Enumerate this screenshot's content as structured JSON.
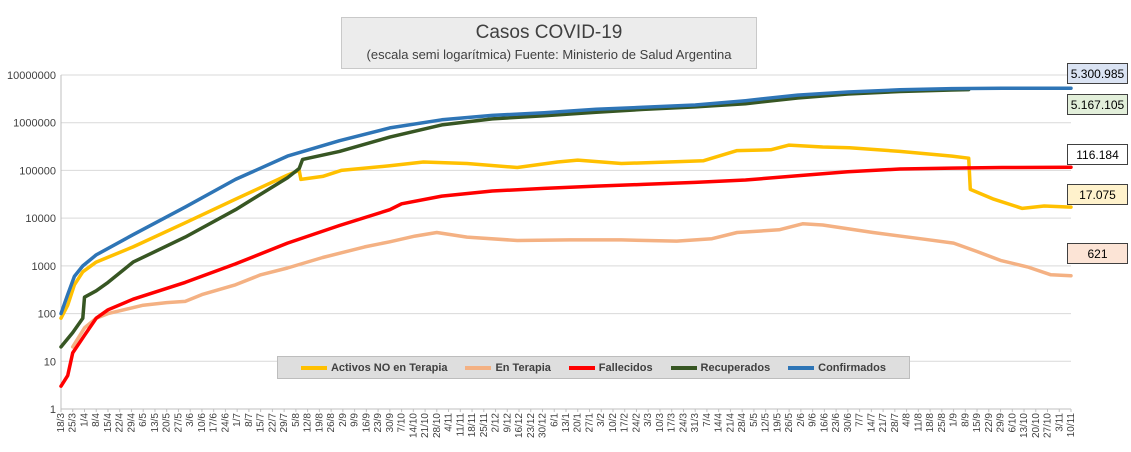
{
  "chart_data": {
    "type": "line",
    "title": "Casos COVID-19",
    "subtitle": "(escala semi logarítmica) Fuente: Ministerio de Salud Argentina",
    "y_scale": "log",
    "ylim": [
      1,
      10000000
    ],
    "y_ticks": [
      "1",
      "10",
      "100",
      "1000",
      "10000",
      "100000",
      "1000000",
      "10000000"
    ],
    "y_tick_values": [
      1,
      10,
      100,
      1000,
      10000,
      100000,
      1000000,
      10000000
    ],
    "x_start": "2020-03-18",
    "x_end": "2021-11-10",
    "x_ticks": [
      "18/3",
      "25/3",
      "1/4",
      "8/4",
      "15/4",
      "22/4",
      "29/4",
      "6/5",
      "13/5",
      "20/5",
      "27/5",
      "3/6",
      "10/6",
      "17/6",
      "24/6",
      "1/7",
      "8/7",
      "15/7",
      "22/7",
      "29/7",
      "5/8",
      "12/8",
      "19/8",
      "26/8",
      "2/9",
      "9/9",
      "16/9",
      "23/9",
      "30/9",
      "7/10",
      "14/10",
      "21/10",
      "28/10",
      "4/11",
      "11/11",
      "18/11",
      "25/11",
      "2/12",
      "9/12",
      "16/12",
      "23/12",
      "30/12",
      "6/1",
      "13/1",
      "20/1",
      "27/1",
      "3/2",
      "10/2",
      "17/2",
      "24/2",
      "3/3",
      "10/3",
      "17/3",
      "24/3",
      "31/3",
      "7/4",
      "14/4",
      "21/4",
      "28/4",
      "5/5",
      "12/5",
      "19/5",
      "26/5",
      "2/6",
      "9/6",
      "16/6",
      "23/6",
      "30/6",
      "7/7",
      "14/7",
      "21/7",
      "28/7",
      "4/8",
      "11/8",
      "18/8",
      "25/8",
      "1/9",
      "8/9",
      "15/9",
      "22/9",
      "29/9",
      "6/10",
      "13/10",
      "20/10",
      "27/10",
      "3/11",
      "10/11"
    ],
    "grid": "horizontal",
    "legend_position": "bottom-center",
    "series": [
      {
        "name": "Activos NO en Terapia",
        "color": "#ffc000",
        "points": [
          [
            "2020-03-18",
            80
          ],
          [
            "2020-03-22",
            150
          ],
          [
            "2020-03-26",
            400
          ],
          [
            "2020-03-31",
            750
          ],
          [
            "2020-04-08",
            1200
          ],
          [
            "2020-04-30",
            2500
          ],
          [
            "2020-05-31",
            8000
          ],
          [
            "2020-06-30",
            25000
          ],
          [
            "2020-07-31",
            80000
          ],
          [
            "2020-08-07",
            100000
          ],
          [
            "2020-08-08",
            65000
          ],
          [
            "2020-08-21",
            75000
          ],
          [
            "2020-09-01",
            100000
          ],
          [
            "2020-09-30",
            125000
          ],
          [
            "2020-10-20",
            150000
          ],
          [
            "2020-11-15",
            140000
          ],
          [
            "2020-12-15",
            115000
          ],
          [
            "2021-01-08",
            150000
          ],
          [
            "2021-01-20",
            165000
          ],
          [
            "2021-02-15",
            140000
          ],
          [
            "2021-03-15",
            150000
          ],
          [
            "2021-04-05",
            160000
          ],
          [
            "2021-04-25",
            260000
          ],
          [
            "2021-05-15",
            270000
          ],
          [
            "2021-05-26",
            340000
          ],
          [
            "2021-06-15",
            310000
          ],
          [
            "2021-07-01",
            300000
          ],
          [
            "2021-07-31",
            250000
          ],
          [
            "2021-08-31",
            200000
          ],
          [
            "2021-09-10",
            180000
          ],
          [
            "2021-09-11",
            40000
          ],
          [
            "2021-09-25",
            25000
          ],
          [
            "2021-10-12",
            16000
          ],
          [
            "2021-10-25",
            18000
          ],
          [
            "2021-11-10",
            17075
          ]
        ]
      },
      {
        "name": "En Terapia",
        "color": "#f4b183",
        "points": [
          [
            "2020-03-25",
            20
          ],
          [
            "2020-04-01",
            50
          ],
          [
            "2020-04-08",
            80
          ],
          [
            "2020-04-15",
            100
          ],
          [
            "2020-05-06",
            150
          ],
          [
            "2020-05-20",
            170
          ],
          [
            "2020-05-31",
            180
          ],
          [
            "2020-06-10",
            250
          ],
          [
            "2020-06-30",
            400
          ],
          [
            "2020-07-15",
            650
          ],
          [
            "2020-07-31",
            900
          ],
          [
            "2020-08-21",
            1500
          ],
          [
            "2020-09-15",
            2500
          ],
          [
            "2020-09-30",
            3200
          ],
          [
            "2020-10-15",
            4200
          ],
          [
            "2020-10-28",
            5000
          ],
          [
            "2020-11-15",
            4000
          ],
          [
            "2020-12-15",
            3400
          ],
          [
            "2021-01-15",
            3500
          ],
          [
            "2021-02-15",
            3500
          ],
          [
            "2021-03-20",
            3300
          ],
          [
            "2021-04-10",
            3700
          ],
          [
            "2021-04-25",
            5000
          ],
          [
            "2021-05-20",
            5700
          ],
          [
            "2021-06-03",
            7600
          ],
          [
            "2021-06-15",
            7200
          ],
          [
            "2021-07-15",
            5000
          ],
          [
            "2021-08-15",
            3600
          ],
          [
            "2021-09-01",
            3000
          ],
          [
            "2021-09-15",
            2000
          ],
          [
            "2021-09-29",
            1300
          ],
          [
            "2021-10-15",
            950
          ],
          [
            "2021-10-29",
            650
          ],
          [
            "2021-11-10",
            621
          ]
        ]
      },
      {
        "name": "Fallecidos",
        "color": "#ff0000",
        "points": [
          [
            "2020-03-18",
            3
          ],
          [
            "2020-03-22",
            5
          ],
          [
            "2020-03-25",
            15
          ],
          [
            "2020-04-01",
            35
          ],
          [
            "2020-04-08",
            80
          ],
          [
            "2020-04-15",
            120
          ],
          [
            "2020-04-30",
            200
          ],
          [
            "2020-05-31",
            450
          ],
          [
            "2020-06-30",
            1100
          ],
          [
            "2020-07-31",
            3000
          ],
          [
            "2020-08-31",
            7000
          ],
          [
            "2020-09-30",
            15000
          ],
          [
            "2020-10-07",
            20000
          ],
          [
            "2020-10-31",
            29000
          ],
          [
            "2020-11-30",
            37000
          ],
          [
            "2020-12-31",
            42000
          ],
          [
            "2021-01-31",
            47000
          ],
          [
            "2021-02-28",
            51000
          ],
          [
            "2021-03-31",
            56000
          ],
          [
            "2021-04-30",
            63000
          ],
          [
            "2021-05-31",
            77000
          ],
          [
            "2021-06-30",
            94000
          ],
          [
            "2021-07-31",
            107000
          ],
          [
            "2021-08-31",
            112000
          ],
          [
            "2021-09-30",
            115000
          ],
          [
            "2021-11-10",
            116184
          ]
        ]
      },
      {
        "name": "Recuperados",
        "color": "#375623",
        "points": [
          [
            "2020-03-18",
            20
          ],
          [
            "2020-03-25",
            40
          ],
          [
            "2020-03-31",
            80
          ],
          [
            "2020-04-01",
            220
          ],
          [
            "2020-04-08",
            300
          ],
          [
            "2020-04-15",
            450
          ],
          [
            "2020-04-30",
            1200
          ],
          [
            "2020-05-31",
            4000
          ],
          [
            "2020-06-30",
            15000
          ],
          [
            "2020-07-31",
            70000
          ],
          [
            "2020-08-07",
            110000
          ],
          [
            "2020-08-09",
            170000
          ],
          [
            "2020-08-31",
            250000
          ],
          [
            "2020-09-30",
            500000
          ],
          [
            "2020-10-31",
            900000
          ],
          [
            "2020-11-30",
            1200000
          ],
          [
            "2020-12-31",
            1400000
          ],
          [
            "2021-01-31",
            1650000
          ],
          [
            "2021-02-28",
            1900000
          ],
          [
            "2021-03-31",
            2150000
          ],
          [
            "2021-04-30",
            2500000
          ],
          [
            "2021-05-31",
            3300000
          ],
          [
            "2021-06-30",
            4000000
          ],
          [
            "2021-07-31",
            4500000
          ],
          [
            "2021-08-31",
            4850000
          ],
          [
            "2021-09-10",
            4950000
          ]
        ]
      },
      {
        "name": "Confirmados",
        "color": "#2e75b6",
        "points": [
          [
            "2020-03-18",
            100
          ],
          [
            "2020-03-22",
            250
          ],
          [
            "2020-03-26",
            600
          ],
          [
            "2020-03-31",
            1000
          ],
          [
            "2020-04-08",
            1700
          ],
          [
            "2020-04-30",
            4500
          ],
          [
            "2020-05-31",
            17000
          ],
          [
            "2020-06-30",
            65000
          ],
          [
            "2020-07-31",
            200000
          ],
          [
            "2020-08-31",
            420000
          ],
          [
            "2020-09-30",
            780000
          ],
          [
            "2020-10-31",
            1150000
          ],
          [
            "2020-11-30",
            1420000
          ],
          [
            "2020-12-31",
            1620000
          ],
          [
            "2021-01-31",
            1920000
          ],
          [
            "2021-02-28",
            2100000
          ],
          [
            "2021-03-31",
            2350000
          ],
          [
            "2021-04-30",
            2900000
          ],
          [
            "2021-05-31",
            3800000
          ],
          [
            "2021-06-30",
            4400000
          ],
          [
            "2021-07-31",
            4900000
          ],
          [
            "2021-08-31",
            5180000
          ],
          [
            "2021-09-30",
            5260000
          ],
          [
            "2021-11-10",
            5300985
          ]
        ]
      }
    ],
    "callouts": [
      {
        "series": "Confirmados",
        "text": "5.300.985",
        "value": 5300985,
        "bg": "#dae3f3"
      },
      {
        "series": "Recuperados",
        "text": "5.167.105",
        "value": 5167105,
        "bg": "#e2efda"
      },
      {
        "series": "Fallecidos",
        "text": "116.184",
        "value": 116184,
        "bg": "#ffffff"
      },
      {
        "series": "Activos NO en Terapia",
        "text": "17.075",
        "value": 17075,
        "bg": "#fff2cc"
      },
      {
        "series": "En Terapia",
        "text": "621",
        "value": 621,
        "bg": "#fce4d6"
      }
    ]
  }
}
